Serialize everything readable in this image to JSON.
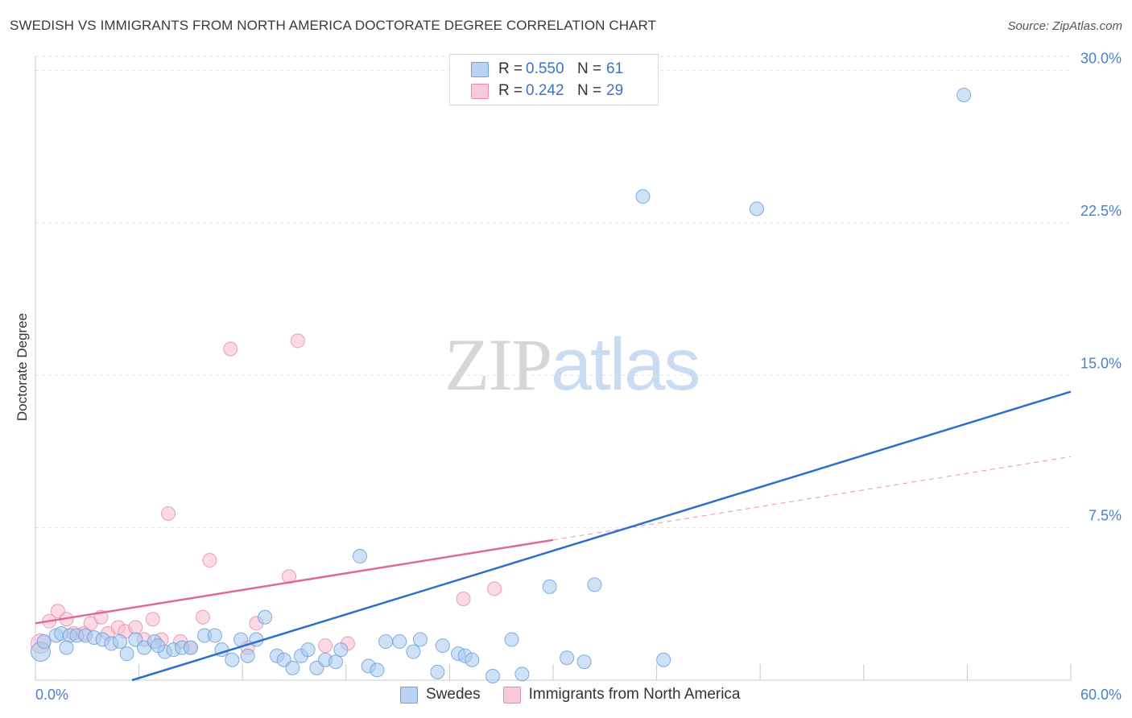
{
  "header": {
    "title": "SWEDISH VS IMMIGRANTS FROM NORTH AMERICA DOCTORATE DEGREE CORRELATION CHART",
    "source": "Source: ZipAtlas.com"
  },
  "watermark": {
    "zip": "ZIP",
    "atlas": "atlas"
  },
  "legend_top": [
    {
      "r_label": "R =",
      "r_value": "0.550",
      "n_label": "N =",
      "n_value": "61"
    },
    {
      "r_label": "R =",
      "r_value": "0.242",
      "n_label": "N =",
      "n_value": "29"
    }
  ],
  "legend_bottom": {
    "swedes": "Swedes",
    "immigrants": "Immigrants from North America"
  },
  "chart_data": {
    "type": "scatter",
    "title": "SWEDISH VS IMMIGRANTS FROM NORTH AMERICA DOCTORATE DEGREE CORRELATION CHART",
    "xlabel": "",
    "ylabel": "Doctorate Degree",
    "xlim": [
      0,
      60
    ],
    "ylim": [
      0,
      30.7
    ],
    "x_tick_labels": [
      "0.0%",
      "60.0%"
    ],
    "y_ticks": [
      7.5,
      15.0,
      22.5,
      30.0
    ],
    "y_tick_labels": [
      "7.5%",
      "15.0%",
      "22.5%",
      "30.0%"
    ],
    "grid": true,
    "colors": {
      "swedes": "#a8c8f0",
      "swedes_edge": "#6f9fd8",
      "swedes_line": "#2e6fcc",
      "immigrants": "#f7bccd",
      "immigrants_edge": "#e68aa6",
      "immigrants_line": "#e0679a"
    },
    "series": [
      {
        "name": "Swedes",
        "points": [
          [
            0.3,
            1.4
          ],
          [
            0.5,
            1.9
          ],
          [
            1.2,
            2.2
          ],
          [
            1.5,
            2.3
          ],
          [
            2.0,
            2.2
          ],
          [
            2.4,
            2.2
          ],
          [
            2.9,
            2.2
          ],
          [
            3.4,
            2.1
          ],
          [
            3.9,
            2.0
          ],
          [
            4.4,
            1.8
          ],
          [
            4.9,
            1.9
          ],
          [
            5.3,
            1.3
          ],
          [
            5.8,
            2.0
          ],
          [
            6.3,
            1.6
          ],
          [
            6.9,
            1.9
          ],
          [
            7.5,
            1.4
          ],
          [
            8.0,
            1.5
          ],
          [
            8.5,
            1.6
          ],
          [
            9.0,
            1.6
          ],
          [
            9.8,
            2.2
          ],
          [
            10.4,
            2.2
          ],
          [
            10.8,
            1.5
          ],
          [
            11.4,
            1.0
          ],
          [
            11.9,
            2.0
          ],
          [
            12.3,
            1.2
          ],
          [
            12.8,
            2.0
          ],
          [
            13.3,
            3.1
          ],
          [
            14.0,
            1.2
          ],
          [
            14.4,
            1.0
          ],
          [
            14.9,
            0.6
          ],
          [
            15.4,
            1.2
          ],
          [
            15.8,
            1.5
          ],
          [
            16.3,
            0.6
          ],
          [
            16.8,
            1.0
          ],
          [
            17.4,
            0.9
          ],
          [
            17.7,
            1.5
          ],
          [
            18.8,
            6.1
          ],
          [
            19.3,
            0.7
          ],
          [
            19.8,
            0.5
          ],
          [
            20.3,
            1.9
          ],
          [
            21.1,
            1.9
          ],
          [
            21.9,
            1.4
          ],
          [
            22.3,
            2.0
          ],
          [
            23.3,
            0.4
          ],
          [
            23.6,
            1.7
          ],
          [
            24.5,
            1.3
          ],
          [
            24.9,
            1.2
          ],
          [
            25.3,
            1.0
          ],
          [
            26.5,
            0.2
          ],
          [
            27.6,
            2.0
          ],
          [
            28.2,
            0.3
          ],
          [
            29.8,
            4.6
          ],
          [
            30.8,
            1.1
          ],
          [
            31.8,
            0.9
          ],
          [
            32.4,
            4.7
          ],
          [
            35.2,
            23.8
          ],
          [
            36.4,
            1.0
          ],
          [
            41.8,
            23.2
          ],
          [
            53.8,
            28.8
          ],
          [
            1.8,
            1.6
          ],
          [
            7.1,
            1.7
          ]
        ],
        "trend": {
          "x": [
            5.6,
            60.0
          ],
          "y": [
            0.0,
            14.2
          ]
        }
      },
      {
        "name": "Immigrants from North America",
        "points": [
          [
            0.3,
            1.8
          ],
          [
            0.8,
            2.9
          ],
          [
            1.3,
            3.4
          ],
          [
            1.8,
            3.0
          ],
          [
            2.2,
            2.3
          ],
          [
            2.8,
            2.3
          ],
          [
            3.2,
            2.8
          ],
          [
            3.8,
            3.1
          ],
          [
            4.2,
            2.3
          ],
          [
            4.8,
            2.6
          ],
          [
            5.2,
            2.4
          ],
          [
            5.8,
            2.6
          ],
          [
            6.3,
            2.0
          ],
          [
            6.8,
            3.0
          ],
          [
            7.3,
            2.0
          ],
          [
            7.7,
            8.2
          ],
          [
            8.4,
            1.9
          ],
          [
            9.0,
            1.6
          ],
          [
            9.7,
            3.1
          ],
          [
            10.1,
            5.9
          ],
          [
            11.3,
            16.3
          ],
          [
            12.3,
            1.6
          ],
          [
            12.8,
            2.8
          ],
          [
            14.7,
            5.1
          ],
          [
            15.2,
            16.7
          ],
          [
            16.8,
            1.7
          ],
          [
            18.1,
            1.8
          ],
          [
            24.8,
            4.0
          ],
          [
            26.6,
            4.5
          ]
        ],
        "trend": {
          "x": [
            0.0,
            60.0
          ],
          "y": [
            2.8,
            11.0
          ]
        },
        "trend_solid_until_x": 30.0
      }
    ]
  }
}
